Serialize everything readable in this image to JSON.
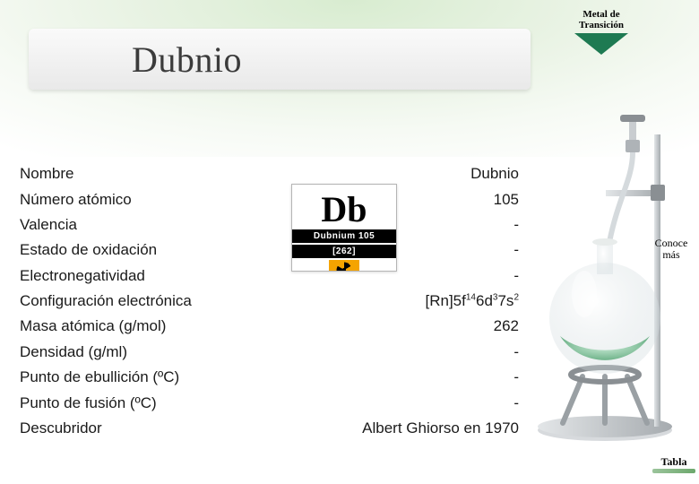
{
  "header": {
    "title": "Dubnio",
    "title_fontsize": 40,
    "title_color": "#3b3b3b",
    "background_gradient_from": "#d8ecd0",
    "background_gradient_to": "#ffffff"
  },
  "ribbon": {
    "label_line1": "Metal de",
    "label_line2": "Transición",
    "triangle_color": "#1e7a52"
  },
  "element_tile": {
    "symbol": "Db",
    "name_line": "Dubnium 105",
    "mass_line": "[262]",
    "hazard_bgcolor": "#f5a400"
  },
  "properties": {
    "label_fontsize": 17,
    "text_color": "#1a1a1a",
    "rows": [
      {
        "label": "Nombre",
        "value": "Dubnio"
      },
      {
        "label": "Número atómico",
        "value": "105"
      },
      {
        "label": "Valencia",
        "value": "-"
      },
      {
        "label": "Estado de oxidación",
        "value": "-"
      },
      {
        "label": "Electronegatividad",
        "value": "-"
      },
      {
        "label": "Configuración electrónica",
        "value_html": "[Rn]5f<sup>14</sup>6d<sup>3</sup>7s<sup>2</sup>"
      },
      {
        "label": "Masa atómica (g/mol)",
        "value": "262"
      },
      {
        "label": "Densidad (g/ml)",
        "value": "-"
      },
      {
        "label": "Punto de ebullición (ºC)",
        "value": "-"
      },
      {
        "label": "Punto de fusión (ºC)",
        "value": "-"
      },
      {
        "label": "Descubridor",
        "value": "Albert Ghiorso en 1970"
      }
    ]
  },
  "buttons": {
    "conoce_mas_line1": "Conoce",
    "conoce_mas_line2": "más",
    "tabla": "Tabla"
  },
  "colors": {
    "page_background": "#ffffff",
    "titlebar_from": "#fafafa",
    "titlebar_to": "#e9e9e9",
    "apparatus_metal": "#c9cdd0",
    "apparatus_dark": "#8a8f93",
    "flask_liquid_from": "#b8e0c6",
    "flask_liquid_to": "#6fb38a"
  }
}
